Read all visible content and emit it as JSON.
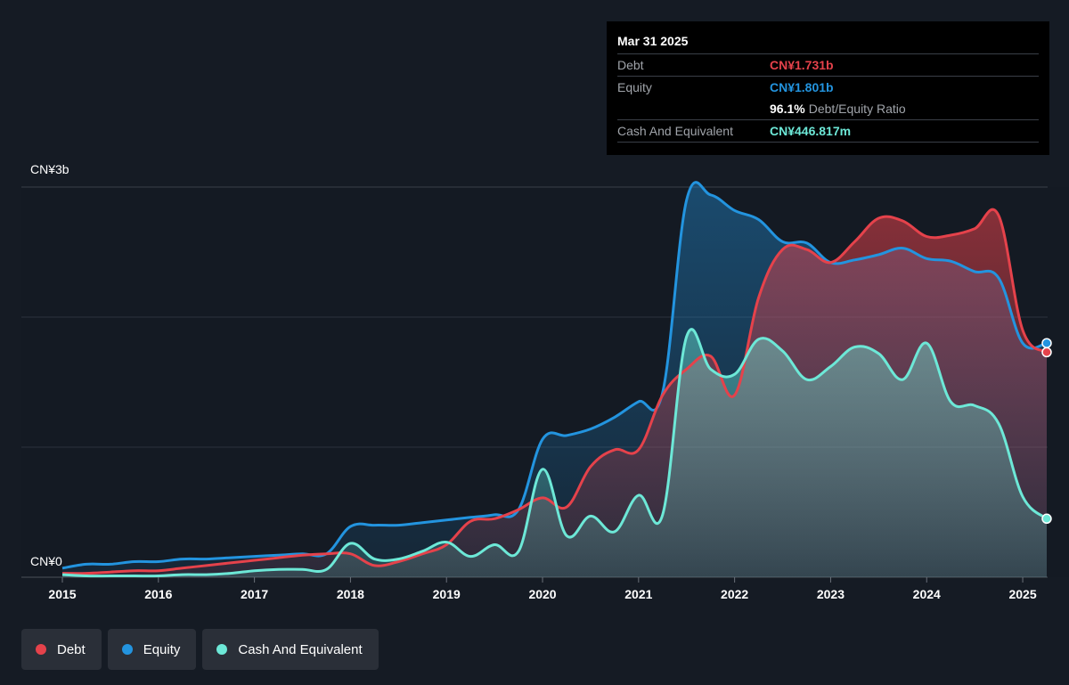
{
  "tooltip": {
    "date": "Mar 31 2025",
    "debt_label": "Debt",
    "debt_value": "CN¥1.731b",
    "equity_label": "Equity",
    "equity_value": "CN¥1.801b",
    "ratio_value": "96.1%",
    "ratio_label": "Debt/Equity Ratio",
    "cash_label": "Cash And Equivalent",
    "cash_value": "CN¥446.817m"
  },
  "legend": [
    {
      "label": "Debt",
      "color": "#e5424b"
    },
    {
      "label": "Equity",
      "color": "#2394df"
    },
    {
      "label": "Cash And Equivalent",
      "color": "#6de8d7"
    }
  ],
  "chart_data": {
    "type": "area",
    "y_top_label": "CN¥3b",
    "y_bottom_label": "CN¥0",
    "ylim": [
      0,
      3.0
    ],
    "y_unit": "CN¥ billions",
    "x_ticks": [
      "2015",
      "2016",
      "2017",
      "2018",
      "2019",
      "2020",
      "2021",
      "2022",
      "2023",
      "2024",
      "2025"
    ],
    "xlim": [
      2015.0,
      2025.25
    ],
    "grid": true,
    "series": [
      {
        "name": "Debt",
        "color": "#e5424b",
        "x": [
          2015.0,
          2015.25,
          2015.5,
          2015.75,
          2016.0,
          2016.25,
          2016.5,
          2016.75,
          2017.0,
          2017.25,
          2017.5,
          2017.75,
          2018.0,
          2018.25,
          2018.5,
          2018.75,
          2019.0,
          2019.25,
          2019.5,
          2019.75,
          2020.0,
          2020.25,
          2020.5,
          2020.75,
          2021.0,
          2021.25,
          2021.5,
          2021.75,
          2022.0,
          2022.25,
          2022.5,
          2022.75,
          2023.0,
          2023.25,
          2023.5,
          2023.75,
          2024.0,
          2024.25,
          2024.5,
          2024.75,
          2025.0,
          2025.25
        ],
        "y": [
          0.03,
          0.03,
          0.04,
          0.05,
          0.05,
          0.07,
          0.09,
          0.11,
          0.13,
          0.15,
          0.17,
          0.18,
          0.18,
          0.09,
          0.12,
          0.18,
          0.25,
          0.43,
          0.45,
          0.52,
          0.61,
          0.54,
          0.85,
          0.98,
          0.98,
          1.4,
          1.6,
          1.7,
          1.4,
          2.15,
          2.52,
          2.52,
          2.42,
          2.58,
          2.76,
          2.74,
          2.62,
          2.63,
          2.68,
          2.78,
          1.9,
          1.73
        ]
      },
      {
        "name": "Equity",
        "color": "#2394df",
        "x": [
          2015.0,
          2015.25,
          2015.5,
          2015.75,
          2016.0,
          2016.25,
          2016.5,
          2016.75,
          2017.0,
          2017.25,
          2017.5,
          2017.75,
          2018.0,
          2018.25,
          2018.5,
          2018.75,
          2019.0,
          2019.25,
          2019.5,
          2019.75,
          2020.0,
          2020.25,
          2020.5,
          2020.75,
          2021.0,
          2021.25,
          2021.5,
          2021.75,
          2022.0,
          2022.25,
          2022.5,
          2022.75,
          2023.0,
          2023.25,
          2023.5,
          2023.75,
          2024.0,
          2024.25,
          2024.5,
          2024.75,
          2025.0,
          2025.25
        ],
        "y": [
          0.07,
          0.1,
          0.1,
          0.12,
          0.12,
          0.14,
          0.14,
          0.15,
          0.16,
          0.17,
          0.18,
          0.18,
          0.39,
          0.4,
          0.4,
          0.42,
          0.44,
          0.46,
          0.48,
          0.52,
          1.06,
          1.09,
          1.14,
          1.23,
          1.35,
          1.42,
          2.9,
          2.94,
          2.82,
          2.75,
          2.58,
          2.57,
          2.42,
          2.44,
          2.48,
          2.53,
          2.45,
          2.43,
          2.35,
          2.3,
          1.8,
          1.8
        ]
      },
      {
        "name": "Cash And Equivalent",
        "color": "#6de8d7",
        "x": [
          2015.0,
          2015.25,
          2015.5,
          2015.75,
          2016.0,
          2016.25,
          2016.5,
          2016.75,
          2017.0,
          2017.25,
          2017.5,
          2017.75,
          2018.0,
          2018.25,
          2018.5,
          2018.75,
          2019.0,
          2019.25,
          2019.5,
          2019.75,
          2020.0,
          2020.25,
          2020.5,
          2020.75,
          2021.0,
          2021.25,
          2021.5,
          2021.75,
          2022.0,
          2022.25,
          2022.5,
          2022.75,
          2023.0,
          2023.25,
          2023.5,
          2023.75,
          2024.0,
          2024.25,
          2024.5,
          2024.75,
          2025.0,
          2025.25
        ],
        "y": [
          0.02,
          0.01,
          0.01,
          0.01,
          0.01,
          0.02,
          0.02,
          0.03,
          0.05,
          0.06,
          0.06,
          0.06,
          0.26,
          0.14,
          0.14,
          0.2,
          0.27,
          0.16,
          0.25,
          0.2,
          0.83,
          0.32,
          0.47,
          0.35,
          0.63,
          0.48,
          1.85,
          1.6,
          1.56,
          1.83,
          1.74,
          1.52,
          1.62,
          1.77,
          1.72,
          1.52,
          1.8,
          1.35,
          1.32,
          1.18,
          0.62,
          0.45
        ]
      }
    ]
  }
}
